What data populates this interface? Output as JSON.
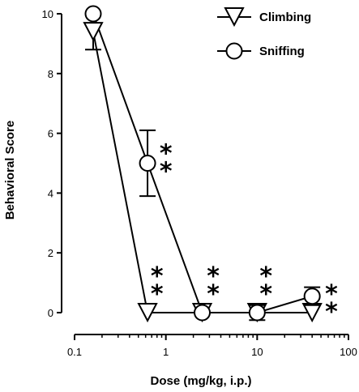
{
  "chart_data": {
    "type": "line",
    "xlabel": "Dose (mg/kg, i.p.)",
    "ylabel": "Behavioral Score",
    "xscale": "log",
    "xlim": [
      0.1,
      100
    ],
    "ylim": [
      0,
      10
    ],
    "x_ticks": [
      0.1,
      1,
      10,
      100
    ],
    "x_tick_labels": [
      "0.1",
      "1",
      "10",
      "100"
    ],
    "y_ticks": [
      0,
      2,
      4,
      6,
      8,
      10
    ],
    "y_tick_labels": [
      "0",
      "2",
      "4",
      "6",
      "8",
      "10"
    ],
    "grid": false,
    "legend_position": "top-right",
    "series": [
      {
        "name": "Climbing",
        "marker": "triangle-down",
        "x": [
          0.16,
          0.63,
          2.5,
          10,
          40
        ],
        "y": [
          9.4,
          0,
          0,
          0,
          0
        ],
        "error": [
          0.6,
          0,
          0,
          0,
          0
        ]
      },
      {
        "name": "Sniffing",
        "marker": "circle",
        "x": [
          0.16,
          0.63,
          2.5,
          10,
          40
        ],
        "y": [
          10,
          5.0,
          0,
          0,
          0.55
        ],
        "error": [
          0,
          1.1,
          0,
          0.25,
          0.3
        ]
      }
    ],
    "annotations": [
      {
        "text": "**",
        "x": 1.0,
        "y": 5.0
      },
      {
        "text": "**",
        "x": 0.8,
        "y": 0.9
      },
      {
        "text": "**",
        "x": 3.3,
        "y": 0.9
      },
      {
        "text": "**",
        "x": 12.5,
        "y": 0.9
      },
      {
        "text": "**",
        "x": 65,
        "y": 0.3
      }
    ]
  }
}
